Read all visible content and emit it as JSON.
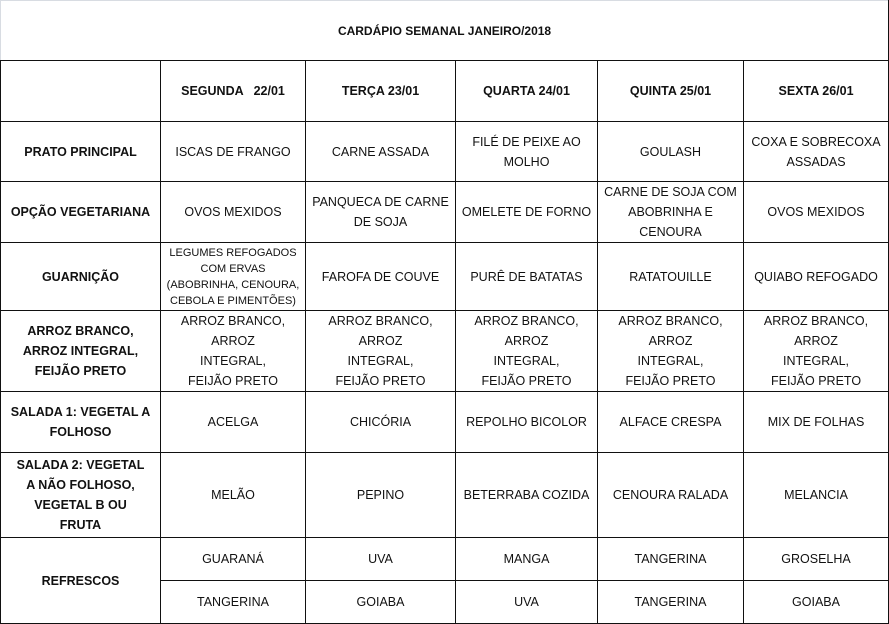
{
  "title": "CARDÁPIO SEMANAL JANEIRO/2018",
  "days": [
    "SEGUNDA   22/01",
    "TERÇA 23/01",
    "QUARTA 24/01",
    "QUINTA 25/01",
    "SEXTA 26/01"
  ],
  "rows": [
    {
      "label": "PRATO PRINCIPAL",
      "cells": [
        "ISCAS DE FRANGO",
        "CARNE ASSADA",
        "FILÉ DE PEIXE AO MOLHO",
        "GOULASH",
        "COXA E SOBRECOXA ASSADAS"
      ]
    },
    {
      "label": "OPÇÃO VEGETARIANA",
      "cells": [
        "OVOS MEXIDOS",
        "PANQUECA DE CARNE DE SOJA",
        "OMELETE DE FORNO",
        "CARNE DE SOJA COM ABOBRINHA E CENOURA",
        "OVOS MEXIDOS"
      ]
    },
    {
      "label": "GUARNIÇÃO",
      "cells": [
        "LEGUMES REFOGADOS COM ERVAS (ABOBRINHA, CENOURA, CEBOLA E PIMENTÕES)",
        "FAROFA DE COUVE",
        "PURÊ DE BATATAS",
        "RATATOUILLE",
        "QUIABO REFOGADO"
      ]
    },
    {
      "label": "ARROZ BRANCO, ARROZ INTEGRAL, FEIJÃO PRETO",
      "cells": [
        "ARROZ BRANCO, ARROZ INTEGRAL, FEIJÃO PRETO",
        "ARROZ BRANCO, ARROZ INTEGRAL, FEIJÃO PRETO",
        "ARROZ BRANCO, ARROZ INTEGRAL, FEIJÃO PRETO",
        "ARROZ BRANCO, ARROZ INTEGRAL, FEIJÃO PRETO",
        "ARROZ BRANCO, ARROZ INTEGRAL, FEIJÃO PRETO"
      ]
    },
    {
      "label": "SALADA 1: VEGETAL A FOLHOSO",
      "cells": [
        "ACELGA",
        "CHICÓRIA",
        "REPOLHO BICOLOR",
        "ALFACE CRESPA",
        "MIX DE FOLHAS"
      ]
    },
    {
      "label": "SALADA 2: VEGETAL A NÃO FOLHOSO, VEGETAL B OU FRUTA",
      "cells": [
        "MELÃO",
        "PEPINO",
        "BETERRABA COZIDA",
        "CENOURA RALADA",
        "MELANCIA"
      ]
    }
  ],
  "refrescos": {
    "label": "REFRESCOS",
    "row1": [
      "GUARANÁ",
      "UVA",
      "MANGA",
      "TANGERINA",
      "GROSELHA"
    ],
    "row2": [
      "TANGERINA",
      "GOIABA",
      "UVA",
      "TANGERINA",
      "GOIABA"
    ]
  }
}
